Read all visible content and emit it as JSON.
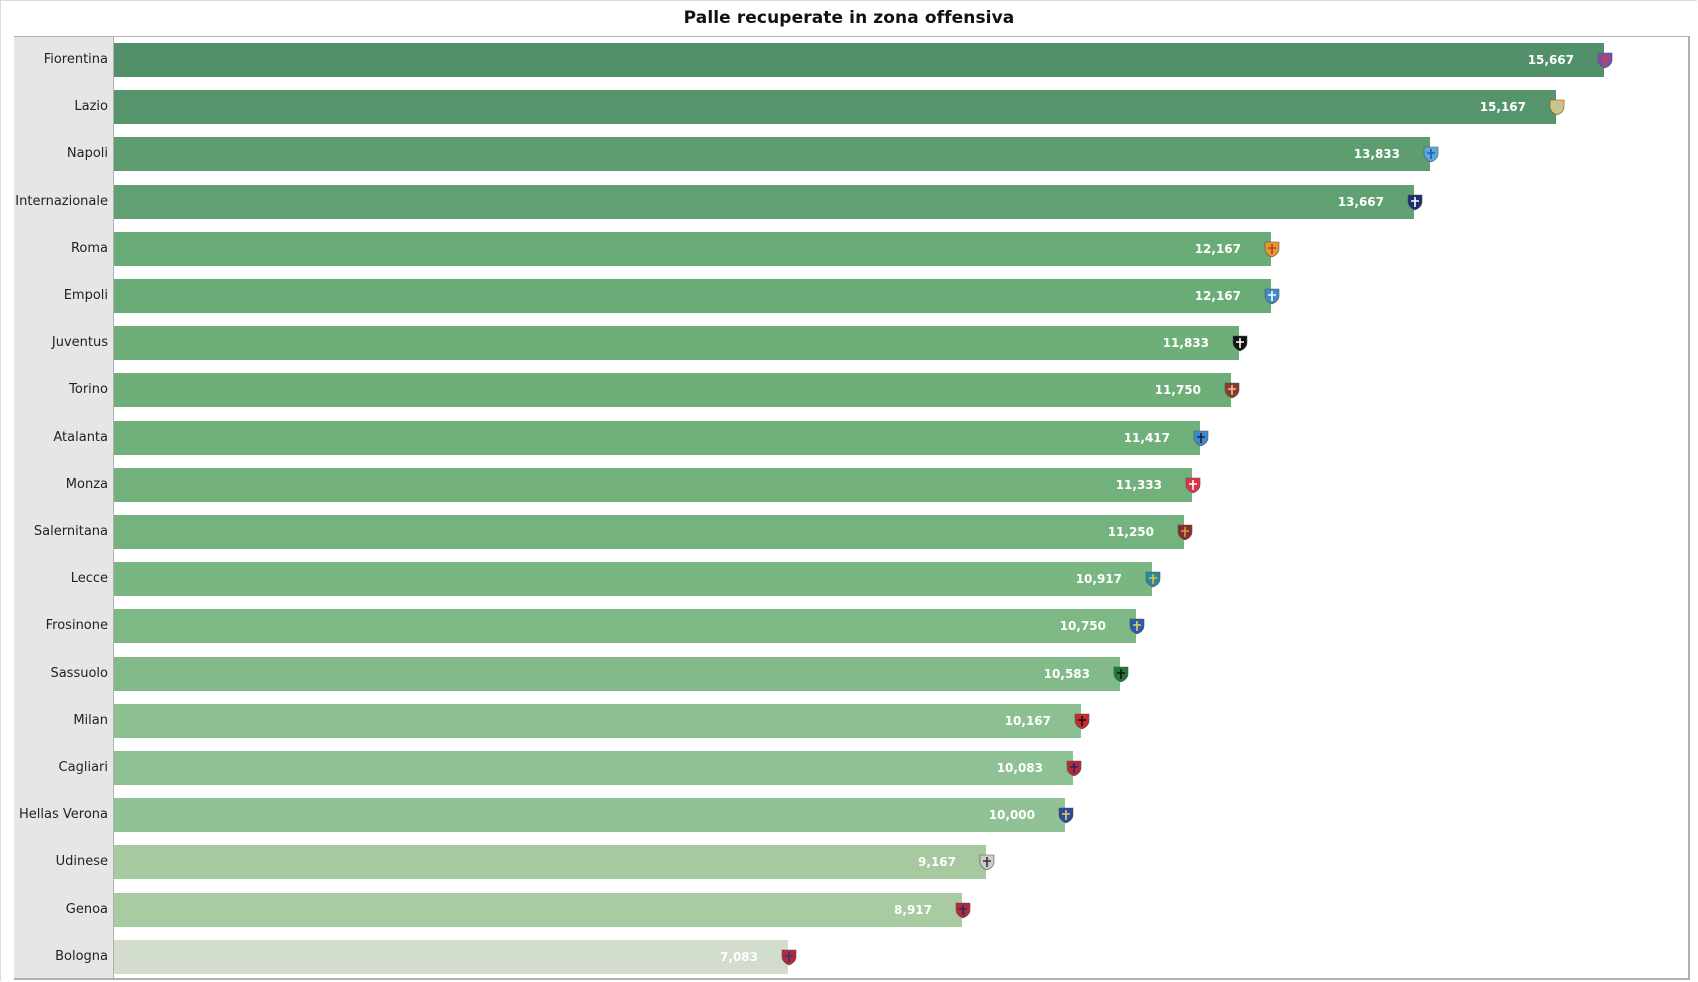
{
  "chart_data": {
    "type": "bar",
    "orientation": "horizontal",
    "title": "Palle recuperate in zona offensiva",
    "xlabel": "",
    "ylabel": "",
    "grid": false,
    "legend": null,
    "value_format": "#,##0.000 (comma decimal)",
    "categories": [
      "Fiorentina",
      "Lazio",
      "Napoli",
      "Internazionale",
      "Roma",
      "Empoli",
      "Juventus",
      "Torino",
      "Atalanta",
      "Monza",
      "Salernitana",
      "Lecce",
      "Frosinone",
      "Sassuolo",
      "Milan",
      "Cagliari",
      "Hellas Verona",
      "Udinese",
      "Genoa",
      "Bologna"
    ],
    "values": [
      15.667,
      15.167,
      13.833,
      13.667,
      12.167,
      12.167,
      11.833,
      11.75,
      11.417,
      11.333,
      11.25,
      10.917,
      10.75,
      10.583,
      10.167,
      10.083,
      10.0,
      9.167,
      8.917,
      7.083
    ],
    "value_labels": [
      "15,667",
      "15,167",
      "13,833",
      "13,667",
      "12,167",
      "12,167",
      "11,833",
      "11,750",
      "11,417",
      "11,333",
      "11,250",
      "10,917",
      "10,750",
      "10,583",
      "10,167",
      "10,083",
      "10,000",
      "9,167",
      "8,917",
      "7,083"
    ]
  },
  "title": "Palle recuperate in zona offensiva",
  "rows": [
    {
      "team": "Fiorentina",
      "label": "15,667",
      "value": 15.667,
      "color": "#52906a",
      "logo": "fiorentina-crest-icon",
      "logo_colors": [
        "#7b4fa6",
        "#e23b3b"
      ]
    },
    {
      "team": "Lazio",
      "label": "15,167",
      "value": 15.167,
      "color": "#56946c",
      "logo": "lazio-eagle-crest-icon",
      "logo_colors": [
        "#d9c36a",
        "#9fc7e6"
      ]
    },
    {
      "team": "Napoli",
      "label": "13,833",
      "value": 13.833,
      "color": "#5e9d70",
      "logo": "napoli-crest-icon",
      "logo_colors": [
        "#5aa9dd",
        "#2a5d9c"
      ]
    },
    {
      "team": "Internazionale",
      "label": "13,667",
      "value": 13.667,
      "color": "#61a072",
      "logo": "inter-crest-icon",
      "logo_colors": [
        "#1b2f6b",
        "#ffffff"
      ]
    },
    {
      "team": "Roma",
      "label": "12,167",
      "value": 12.167,
      "color": "#6aac77",
      "logo": "roma-crest-icon",
      "logo_colors": [
        "#e69a2e",
        "#b53a3a"
      ]
    },
    {
      "team": "Empoli",
      "label": "12,167",
      "value": 12.167,
      "color": "#6aac77",
      "logo": "empoli-crest-icon",
      "logo_colors": [
        "#3d8cc7",
        "#ffffff"
      ]
    },
    {
      "team": "Juventus",
      "label": "11,833",
      "value": 11.833,
      "color": "#6dae79",
      "logo": "juventus-crest-icon",
      "logo_colors": [
        "#111111",
        "#ffffff"
      ]
    },
    {
      "team": "Torino",
      "label": "11,750",
      "value": 11.75,
      "color": "#6dae79",
      "logo": "torino-crest-icon",
      "logo_colors": [
        "#8b3a2a",
        "#e8c8a0"
      ]
    },
    {
      "team": "Atalanta",
      "label": "11,417",
      "value": 11.417,
      "color": "#70b07b",
      "logo": "atalanta-crest-icon",
      "logo_colors": [
        "#3a8ad6",
        "#222222"
      ]
    },
    {
      "team": "Monza",
      "label": "11,333",
      "value": 11.333,
      "color": "#72b17c",
      "logo": "monza-crest-icon",
      "logo_colors": [
        "#e0334a",
        "#ffffff"
      ]
    },
    {
      "team": "Salernitana",
      "label": "11,250",
      "value": 11.25,
      "color": "#74b27e",
      "logo": "salernitana-crest-icon",
      "logo_colors": [
        "#8a2a2a",
        "#c9a04a"
      ]
    },
    {
      "team": "Lecce",
      "label": "10,917",
      "value": 10.917,
      "color": "#7ab682",
      "logo": "lecce-crest-icon",
      "logo_colors": [
        "#2a8a9c",
        "#e2c04a"
      ]
    },
    {
      "team": "Frosinone",
      "label": "10,750",
      "value": 10.75,
      "color": "#7db885",
      "logo": "frosinone-crest-icon",
      "logo_colors": [
        "#2a5ab0",
        "#e8d24a"
      ]
    },
    {
      "team": "Sassuolo",
      "label": "10,583",
      "value": 10.583,
      "color": "#82bb89",
      "logo": "sassuolo-crest-icon",
      "logo_colors": [
        "#1e7a3a",
        "#111111"
      ]
    },
    {
      "team": "Milan",
      "label": "10,167",
      "value": 10.167,
      "color": "#8cc091",
      "logo": "milan-crest-icon",
      "logo_colors": [
        "#c8282e",
        "#111111"
      ]
    },
    {
      "team": "Cagliari",
      "label": "10,083",
      "value": 10.083,
      "color": "#8ec193",
      "logo": "cagliari-crest-icon",
      "logo_colors": [
        "#b7283a",
        "#1e2a6a"
      ]
    },
    {
      "team": "Hellas Verona",
      "label": "10,000",
      "value": 10.0,
      "color": "#90c295",
      "logo": "verona-crest-icon",
      "logo_colors": [
        "#2a4aa0",
        "#e8d24a"
      ]
    },
    {
      "team": "Udinese",
      "label": "9,167",
      "value": 9.167,
      "color": "#a6c99f",
      "logo": "udinese-crest-icon",
      "logo_colors": [
        "#cccccc",
        "#333333"
      ]
    },
    {
      "team": "Genoa",
      "label": "8,917",
      "value": 8.917,
      "color": "#a9cba2",
      "logo": "genoa-crest-icon",
      "logo_colors": [
        "#b7283a",
        "#1e2a6a"
      ]
    },
    {
      "team": "Bologna",
      "label": "7,083",
      "value": 7.083,
      "color": "#d2ddcd",
      "logo": "bologna-crest-icon",
      "logo_colors": [
        "#b7283a",
        "#1e3a8a"
      ]
    }
  ]
}
